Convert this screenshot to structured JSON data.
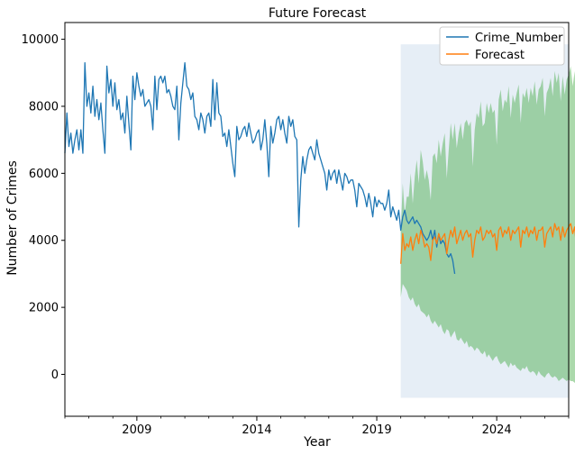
{
  "chart_data": {
    "type": "line",
    "title": "Future Forecast",
    "xlabel": "Year",
    "ylabel": "Number of Crimes",
    "xlim": [
      2006.0,
      2027.0
    ],
    "ylim": [
      -1250,
      10500
    ],
    "x_ticks": [
      2009,
      2014,
      2019,
      2024
    ],
    "y_ticks": [
      0,
      2000,
      4000,
      6000,
      8000,
      10000
    ],
    "grid": false,
    "legend_position": "top-right",
    "series": [
      {
        "name": "Crime_Number",
        "color": "#1f77b4",
        "start": 2006.0,
        "step": 0.0833333,
        "values": [
          6600,
          7800,
          6800,
          7200,
          6600,
          7000,
          7300,
          6700,
          7300,
          6600,
          9300,
          8000,
          8400,
          7800,
          8600,
          7700,
          8200,
          7600,
          8100,
          7300,
          6600,
          9200,
          8400,
          8800,
          8000,
          8700,
          7900,
          8200,
          7600,
          7800,
          7200,
          8300,
          7500,
          6700,
          8900,
          8200,
          9000,
          8600,
          8300,
          8500,
          8000,
          8100,
          8200,
          8000,
          7300,
          8900,
          7900,
          8800,
          8900,
          8700,
          8900,
          8400,
          8500,
          8300,
          8000,
          7900,
          8600,
          7000,
          8100,
          8700,
          9300,
          8600,
          8500,
          8200,
          8400,
          7700,
          7600,
          7300,
          7800,
          7600,
          7200,
          7700,
          7800,
          7400,
          8800,
          7600,
          8700,
          7800,
          7700,
          7100,
          7200,
          6800,
          7300,
          6800,
          6300,
          5900,
          7400,
          7000,
          7100,
          7300,
          7400,
          7100,
          7500,
          7200,
          6900,
          7000,
          7200,
          7300,
          6700,
          7000,
          7600,
          6900,
          5900,
          7400,
          6900,
          7200,
          7600,
          7700,
          7300,
          7600,
          7200,
          6900,
          7700,
          7400,
          7600,
          7100,
          7000,
          4400,
          5800,
          6500,
          6000,
          6400,
          6700,
          6800,
          6600,
          6400,
          7000,
          6600,
          6400,
          6200,
          6000,
          5500,
          6100,
          5800,
          6000,
          6100,
          5700,
          6100,
          5800,
          5500,
          6000,
          5900,
          5700,
          5800,
          5800,
          5500,
          5000,
          5700,
          5600,
          5500,
          5300,
          5000,
          5400,
          5100,
          4700,
          5300,
          5000,
          5200,
          5100,
          5100,
          4900,
          5100,
          5500,
          4700,
          5000,
          4800,
          4600,
          4900,
          4300,
          4700,
          4900,
          4600,
          4500,
          4600,
          4700,
          4500,
          4600,
          4500,
          4400,
          4200,
          4100,
          4000,
          4100,
          4300,
          4000,
          4300,
          3800,
          4200,
          3900,
          4000,
          3900,
          3600,
          3500,
          3600,
          3400,
          3000
        ]
      },
      {
        "name": "Forecast",
        "color": "#ff7f0e",
        "start": 2020.0,
        "step": 0.0833333,
        "values": [
          3300,
          4200,
          3700,
          3900,
          3800,
          4100,
          3700,
          4000,
          4200,
          3900,
          4300,
          4100,
          3800,
          3900,
          3800,
          3400,
          4000,
          4100,
          3900,
          4200,
          4000,
          4100,
          4200,
          3600,
          4000,
          4300,
          4100,
          4400,
          3900,
          4100,
          4300,
          4000,
          4200,
          4300,
          4100,
          4200,
          3500,
          4000,
          4300,
          4200,
          4400,
          4000,
          4100,
          4300,
          4200,
          4300,
          4100,
          4200,
          3700,
          4300,
          4400,
          4100,
          4300,
          4200,
          4400,
          4000,
          4300,
          4200,
          4300,
          4400,
          3800,
          4300,
          4200,
          4400,
          4100,
          4300,
          4200,
          4400,
          4000,
          4300,
          4300,
          4400,
          3800,
          4200,
          4300,
          4400,
          4100,
          4500,
          4300,
          4400,
          4000,
          4400,
          4100,
          4300,
          4400,
          4500,
          4200,
          4400,
          3700
        ]
      }
    ],
    "confidence_interval": {
      "color": "#2ca02c",
      "opacity": 0.4,
      "start": 2020.0,
      "step": 0.0833333,
      "lower": [
        2300,
        2700,
        2600,
        2500,
        2300,
        2200,
        2300,
        2100,
        2000,
        2100,
        1900,
        1850,
        1800,
        1700,
        1800,
        1600,
        1500,
        1600,
        1500,
        1400,
        1500,
        1300,
        1200,
        1350,
        1300,
        1100,
        1200,
        1300,
        1050,
        1000,
        1100,
        1000,
        900,
        1000,
        800,
        850,
        800,
        700,
        800,
        750,
        650,
        600,
        700,
        500,
        600,
        500,
        400,
        500,
        550,
        400,
        300,
        350,
        400,
        300,
        200,
        350,
        250,
        300,
        200,
        150,
        100,
        200,
        150,
        250,
        100,
        50,
        100,
        50,
        -50,
        100,
        0,
        -50,
        -100,
        0,
        50,
        -50,
        -100,
        -50,
        -100,
        -200,
        -150,
        -100,
        -150,
        -200,
        -150,
        -200,
        -200,
        -250,
        -300
      ]
    },
    "forecast_region": {
      "x_start": 2020.0,
      "x_end": 2027.0,
      "y_low": -700,
      "y_high": 9850,
      "color": "#e6eef6"
    }
  }
}
